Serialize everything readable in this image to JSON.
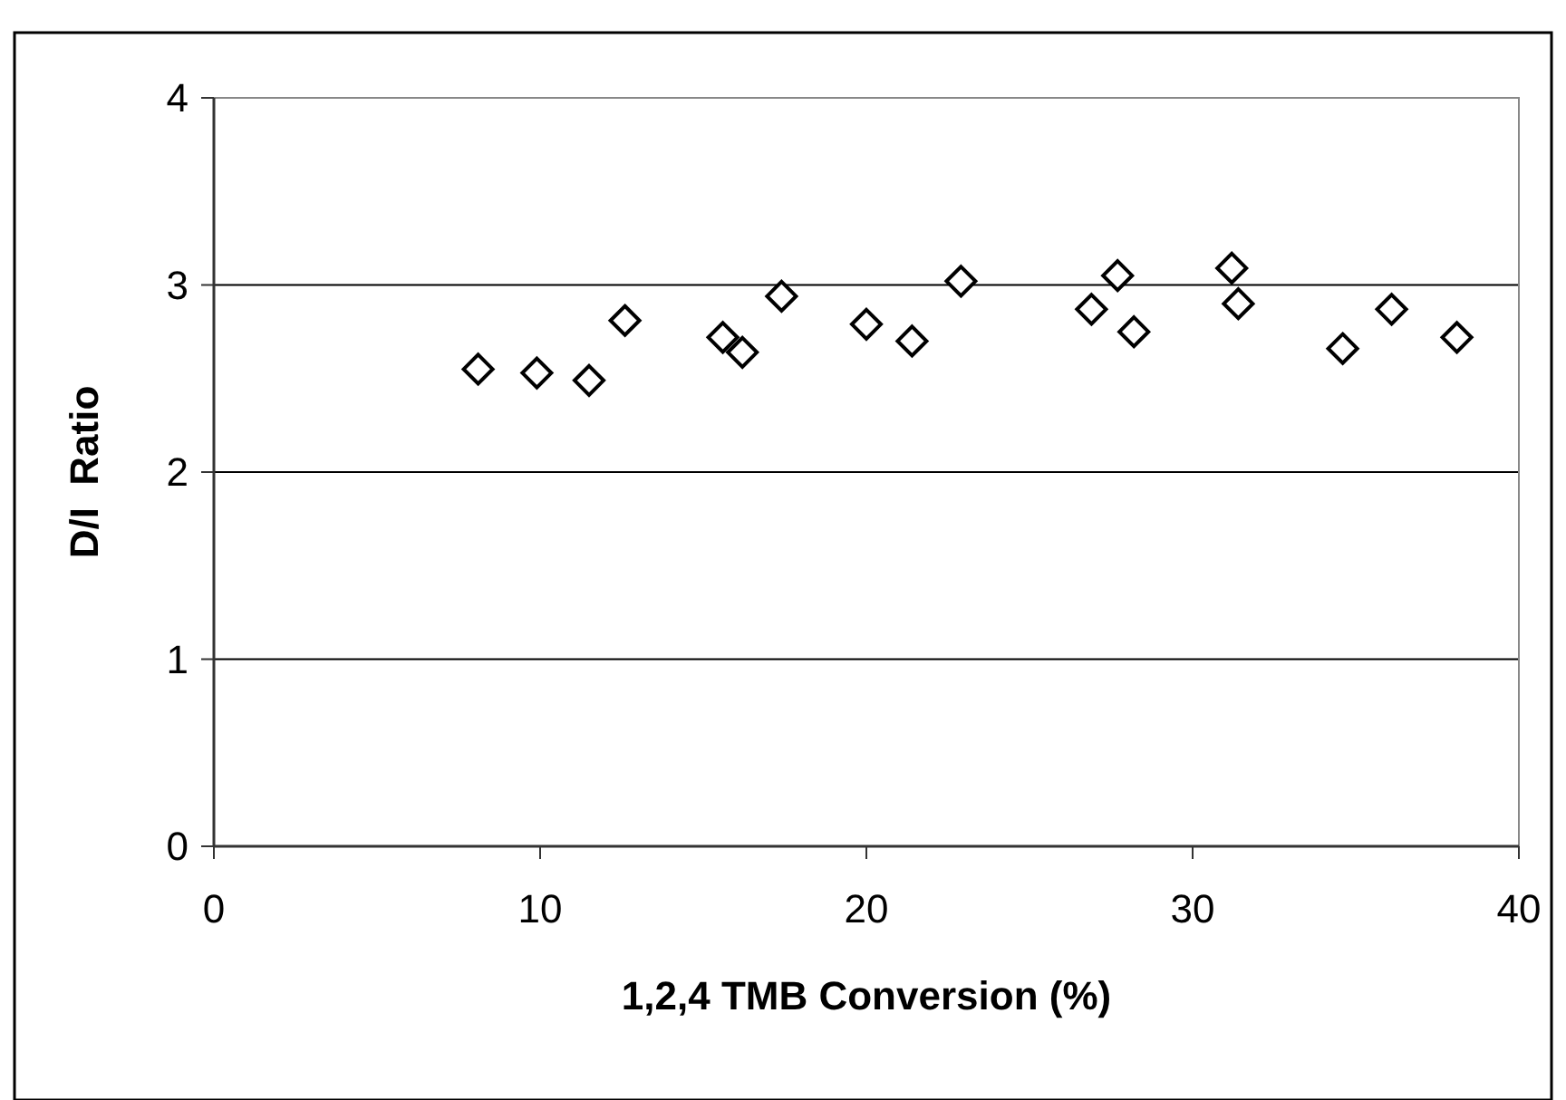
{
  "chart_data": {
    "type": "scatter",
    "xlabel": "1,2,4 TMB Conversion (%)",
    "ylabel": "D/I  Ratio",
    "x": [
      8.1,
      9.9,
      11.5,
      12.6,
      15.6,
      16.2,
      17.4,
      20.0,
      21.4,
      22.9,
      26.9,
      27.7,
      28.2,
      31.2,
      31.4,
      34.6,
      36.1,
      38.1
    ],
    "series": [
      {
        "color": "#000000",
        "values": [
          2.55,
          2.53,
          2.49,
          2.81,
          2.72,
          2.64,
          2.94,
          2.79,
          2.7,
          3.02,
          2.87,
          3.05,
          2.75,
          3.09,
          2.9,
          2.66,
          2.87,
          2.72
        ]
      }
    ],
    "xlim": [
      0,
      40
    ],
    "xticks": [
      0,
      10,
      20,
      30,
      40
    ],
    "ylim": [
      0,
      4
    ],
    "yticks": [
      0,
      1,
      2,
      3,
      4
    ],
    "grid": "y",
    "marker": "diamond"
  }
}
